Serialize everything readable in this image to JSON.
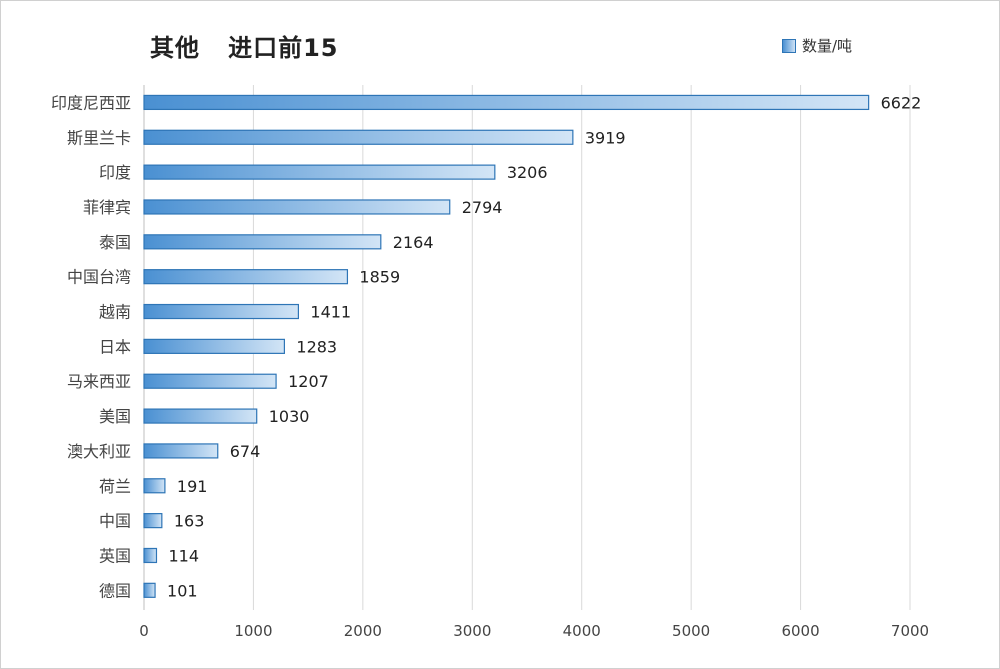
{
  "title": "其他   进口前15",
  "legend": {
    "label": "数量/吨"
  },
  "colors": {
    "bar_start": "#4a90d2",
    "bar_end": "#d3e5f6",
    "bar_border": "#2e75b6",
    "grid": "#d9d9d9",
    "text": "#444444"
  },
  "chart_data": {
    "type": "bar",
    "orientation": "horizontal",
    "title": "其他   进口前15",
    "categories": [
      "印度尼西亚",
      "斯里兰卡",
      "印度",
      "菲律宾",
      "泰国",
      "中国台湾",
      "越南",
      "日本",
      "马来西亚",
      "美国",
      "澳大利亚",
      "荷兰",
      "中国",
      "英国",
      "德国"
    ],
    "series": [
      {
        "name": "数量/吨",
        "values": [
          6622,
          3919,
          3206,
          2794,
          2164,
          1859,
          1411,
          1283,
          1207,
          1030,
          674,
          191,
          163,
          114,
          101
        ]
      }
    ],
    "xlim": [
      0,
      7000
    ],
    "xticks": [
      0,
      1000,
      2000,
      3000,
      4000,
      5000,
      6000,
      7000
    ],
    "grid": true,
    "legend_position": "top-right",
    "data_labels": true
  }
}
